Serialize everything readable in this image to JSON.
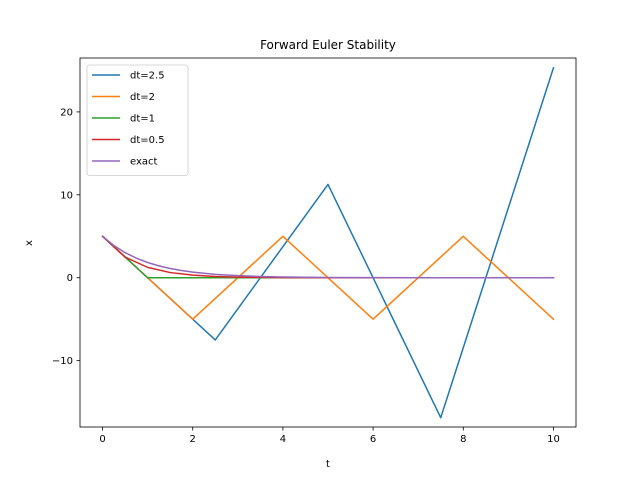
{
  "chart_data": {
    "type": "line",
    "title": "Forward Euler Stability",
    "xlabel": "t",
    "ylabel": "x",
    "xlim": [
      -0.5,
      10.5
    ],
    "ylim": [
      -18.0,
      26.5
    ],
    "xticks": [
      0,
      2,
      4,
      6,
      8,
      10
    ],
    "yticks": [
      -10,
      0,
      10,
      20
    ],
    "grid": false,
    "legend_position": "upper-left",
    "series": [
      {
        "name": "dt=2.5",
        "color": "#1f77b4",
        "x": [
          0,
          2.5,
          5,
          7.5,
          10
        ],
        "y": [
          5,
          -7.5,
          11.25,
          -16.875,
          25.3125
        ]
      },
      {
        "name": "dt=2",
        "color": "#ff7f0e",
        "x": [
          0,
          2,
          4,
          6,
          8,
          10
        ],
        "y": [
          5,
          -5,
          5,
          -5,
          5,
          -5
        ]
      },
      {
        "name": "dt=1",
        "color": "#2ca02c",
        "x": [
          0,
          1,
          2,
          3,
          4,
          5,
          6,
          7,
          8,
          9,
          10
        ],
        "y": [
          5,
          0,
          0,
          0,
          0,
          0,
          0,
          0,
          0,
          0,
          0
        ]
      },
      {
        "name": "dt=0.5",
        "color": "#d62728",
        "x": [
          0,
          0.5,
          1,
          1.5,
          2,
          2.5,
          3,
          3.5,
          4,
          4.5,
          5,
          5.5,
          6,
          6.5,
          7,
          7.5,
          8,
          8.5,
          9,
          9.5,
          10
        ],
        "y": [
          5,
          2.5,
          1.25,
          0.625,
          0.3125,
          0.15625,
          0.078125,
          0.0390625,
          0.01953125,
          0.009765625,
          0.0048828125,
          0.00244140625,
          0.001220703125,
          0.0006103515625,
          0.00030517578125,
          0.000152587890625,
          7.62939453125e-05,
          3.814697265625e-05,
          1.9073486328125e-05,
          9.5367431640625e-06,
          4.76837158203125e-06
        ]
      },
      {
        "name": "exact",
        "color": "#9467bd",
        "x": [
          0,
          0.25,
          0.5,
          0.75,
          1,
          1.25,
          1.5,
          1.75,
          2,
          2.5,
          3,
          3.5,
          4,
          4.5,
          5,
          6,
          7,
          8,
          9,
          10
        ],
        "y": [
          5,
          3.894,
          3.033,
          2.362,
          1.839,
          1.433,
          1.116,
          0.869,
          0.677,
          0.41,
          0.249,
          0.151,
          0.092,
          0.056,
          0.034,
          0.012,
          0.005,
          0.002,
          0.001,
          0.0002
        ]
      }
    ]
  }
}
